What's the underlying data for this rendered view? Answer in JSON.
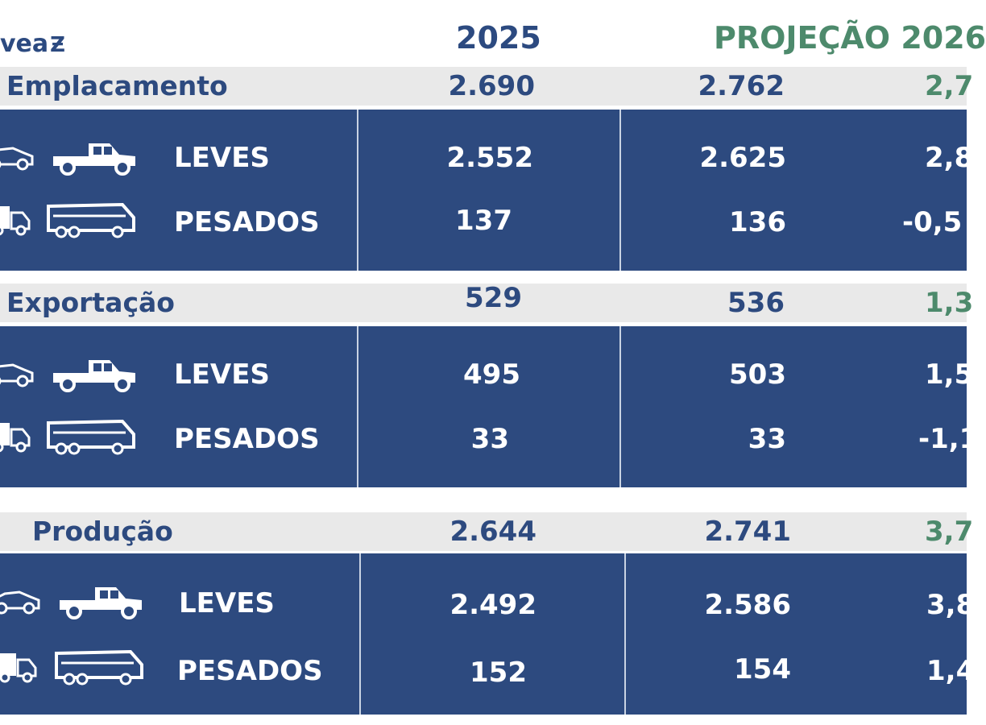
{
  "header": {
    "logo_text": "vea",
    "logo_mark": "Ƶ",
    "col_2025": "2025",
    "col_projection": "PROJEÇÃO 2026"
  },
  "sections": [
    {
      "title": "Emplacamento",
      "v2025": "2.690",
      "v2026": "2.762",
      "pct": "2,7",
      "rows": [
        {
          "label": "LEVES",
          "v2025": "2.552",
          "v2026": "2.625",
          "pct": "2,8",
          "icon_left": "car-icon",
          "icon_right": "pickup-truck-icon"
        },
        {
          "label": "PESADOS",
          "v2025": "137",
          "v2026": "136",
          "pct": "-0,5",
          "icon_left": "truck-icon",
          "icon_right": "bus-icon"
        }
      ]
    },
    {
      "title": "Exportação",
      "v2025": "529",
      "v2026": "536",
      "pct": "1,3",
      "rows": [
        {
          "label": "LEVES",
          "v2025": "495",
          "v2026": "503",
          "pct": "1,5",
          "icon_left": "car-icon",
          "icon_right": "pickup-truck-icon"
        },
        {
          "label": "PESADOS",
          "v2025": "33",
          "v2026": "33",
          "pct": "-1,1",
          "icon_left": "truck-icon",
          "icon_right": "bus-icon"
        }
      ]
    },
    {
      "title": "Produção",
      "v2025": "2.644",
      "v2026": "2.741",
      "pct": "3,7",
      "rows": [
        {
          "label": "LEVES",
          "v2025": "2.492",
          "v2026": "2.586",
          "pct": "3,8",
          "icon_left": "car-icon",
          "icon_right": "pickup-truck-icon"
        },
        {
          "label": "PESADOS",
          "v2025": "152",
          "v2026": "154",
          "pct": "1,4",
          "icon_left": "truck-icon",
          "icon_right": "bus-icon"
        }
      ]
    }
  ],
  "colors": {
    "navy": "#2d4a7f",
    "green": "#4d8a6c",
    "section_bar": "#e9e9e9"
  }
}
